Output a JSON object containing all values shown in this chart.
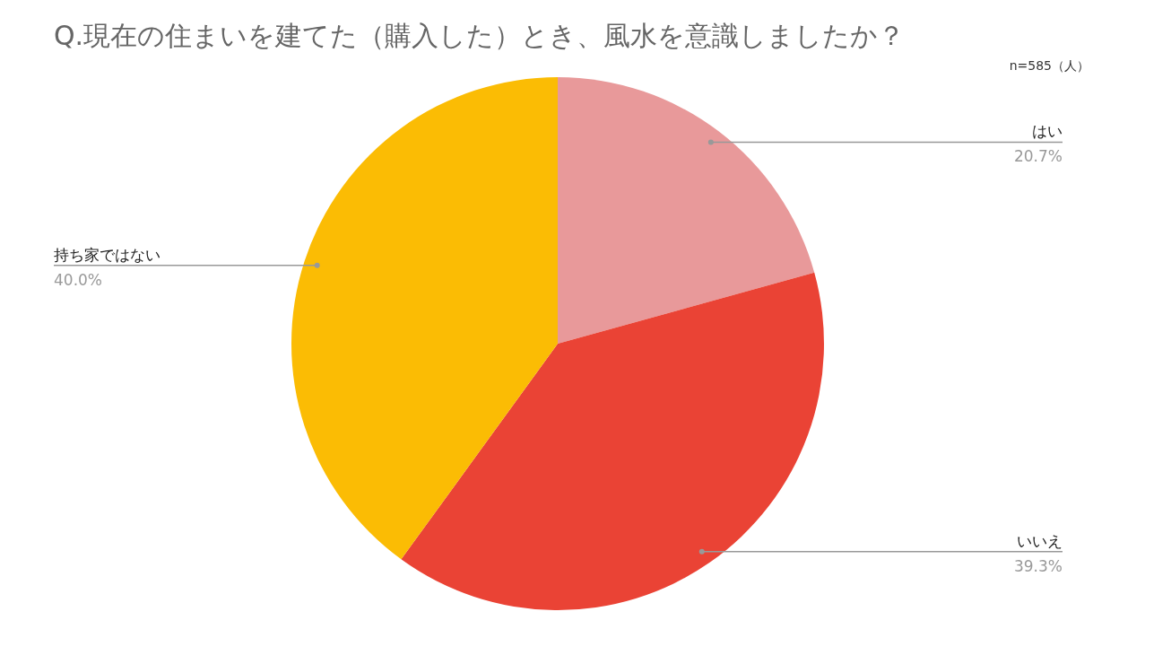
{
  "chart_data": {
    "type": "pie",
    "title": "Q.現在の住まいを建てた（購入した）とき、風水を意識しましたか？",
    "annotations": [
      "n=585（人）"
    ],
    "categories": [
      "はい",
      "いいえ",
      "持ち家ではない"
    ],
    "values": [
      20.7,
      39.3,
      40.0
    ],
    "colors": [
      "#e8999a",
      "#ea4335",
      "#fbbc04"
    ],
    "value_labels": [
      "20.7%",
      "39.3%",
      "40.0%"
    ]
  }
}
